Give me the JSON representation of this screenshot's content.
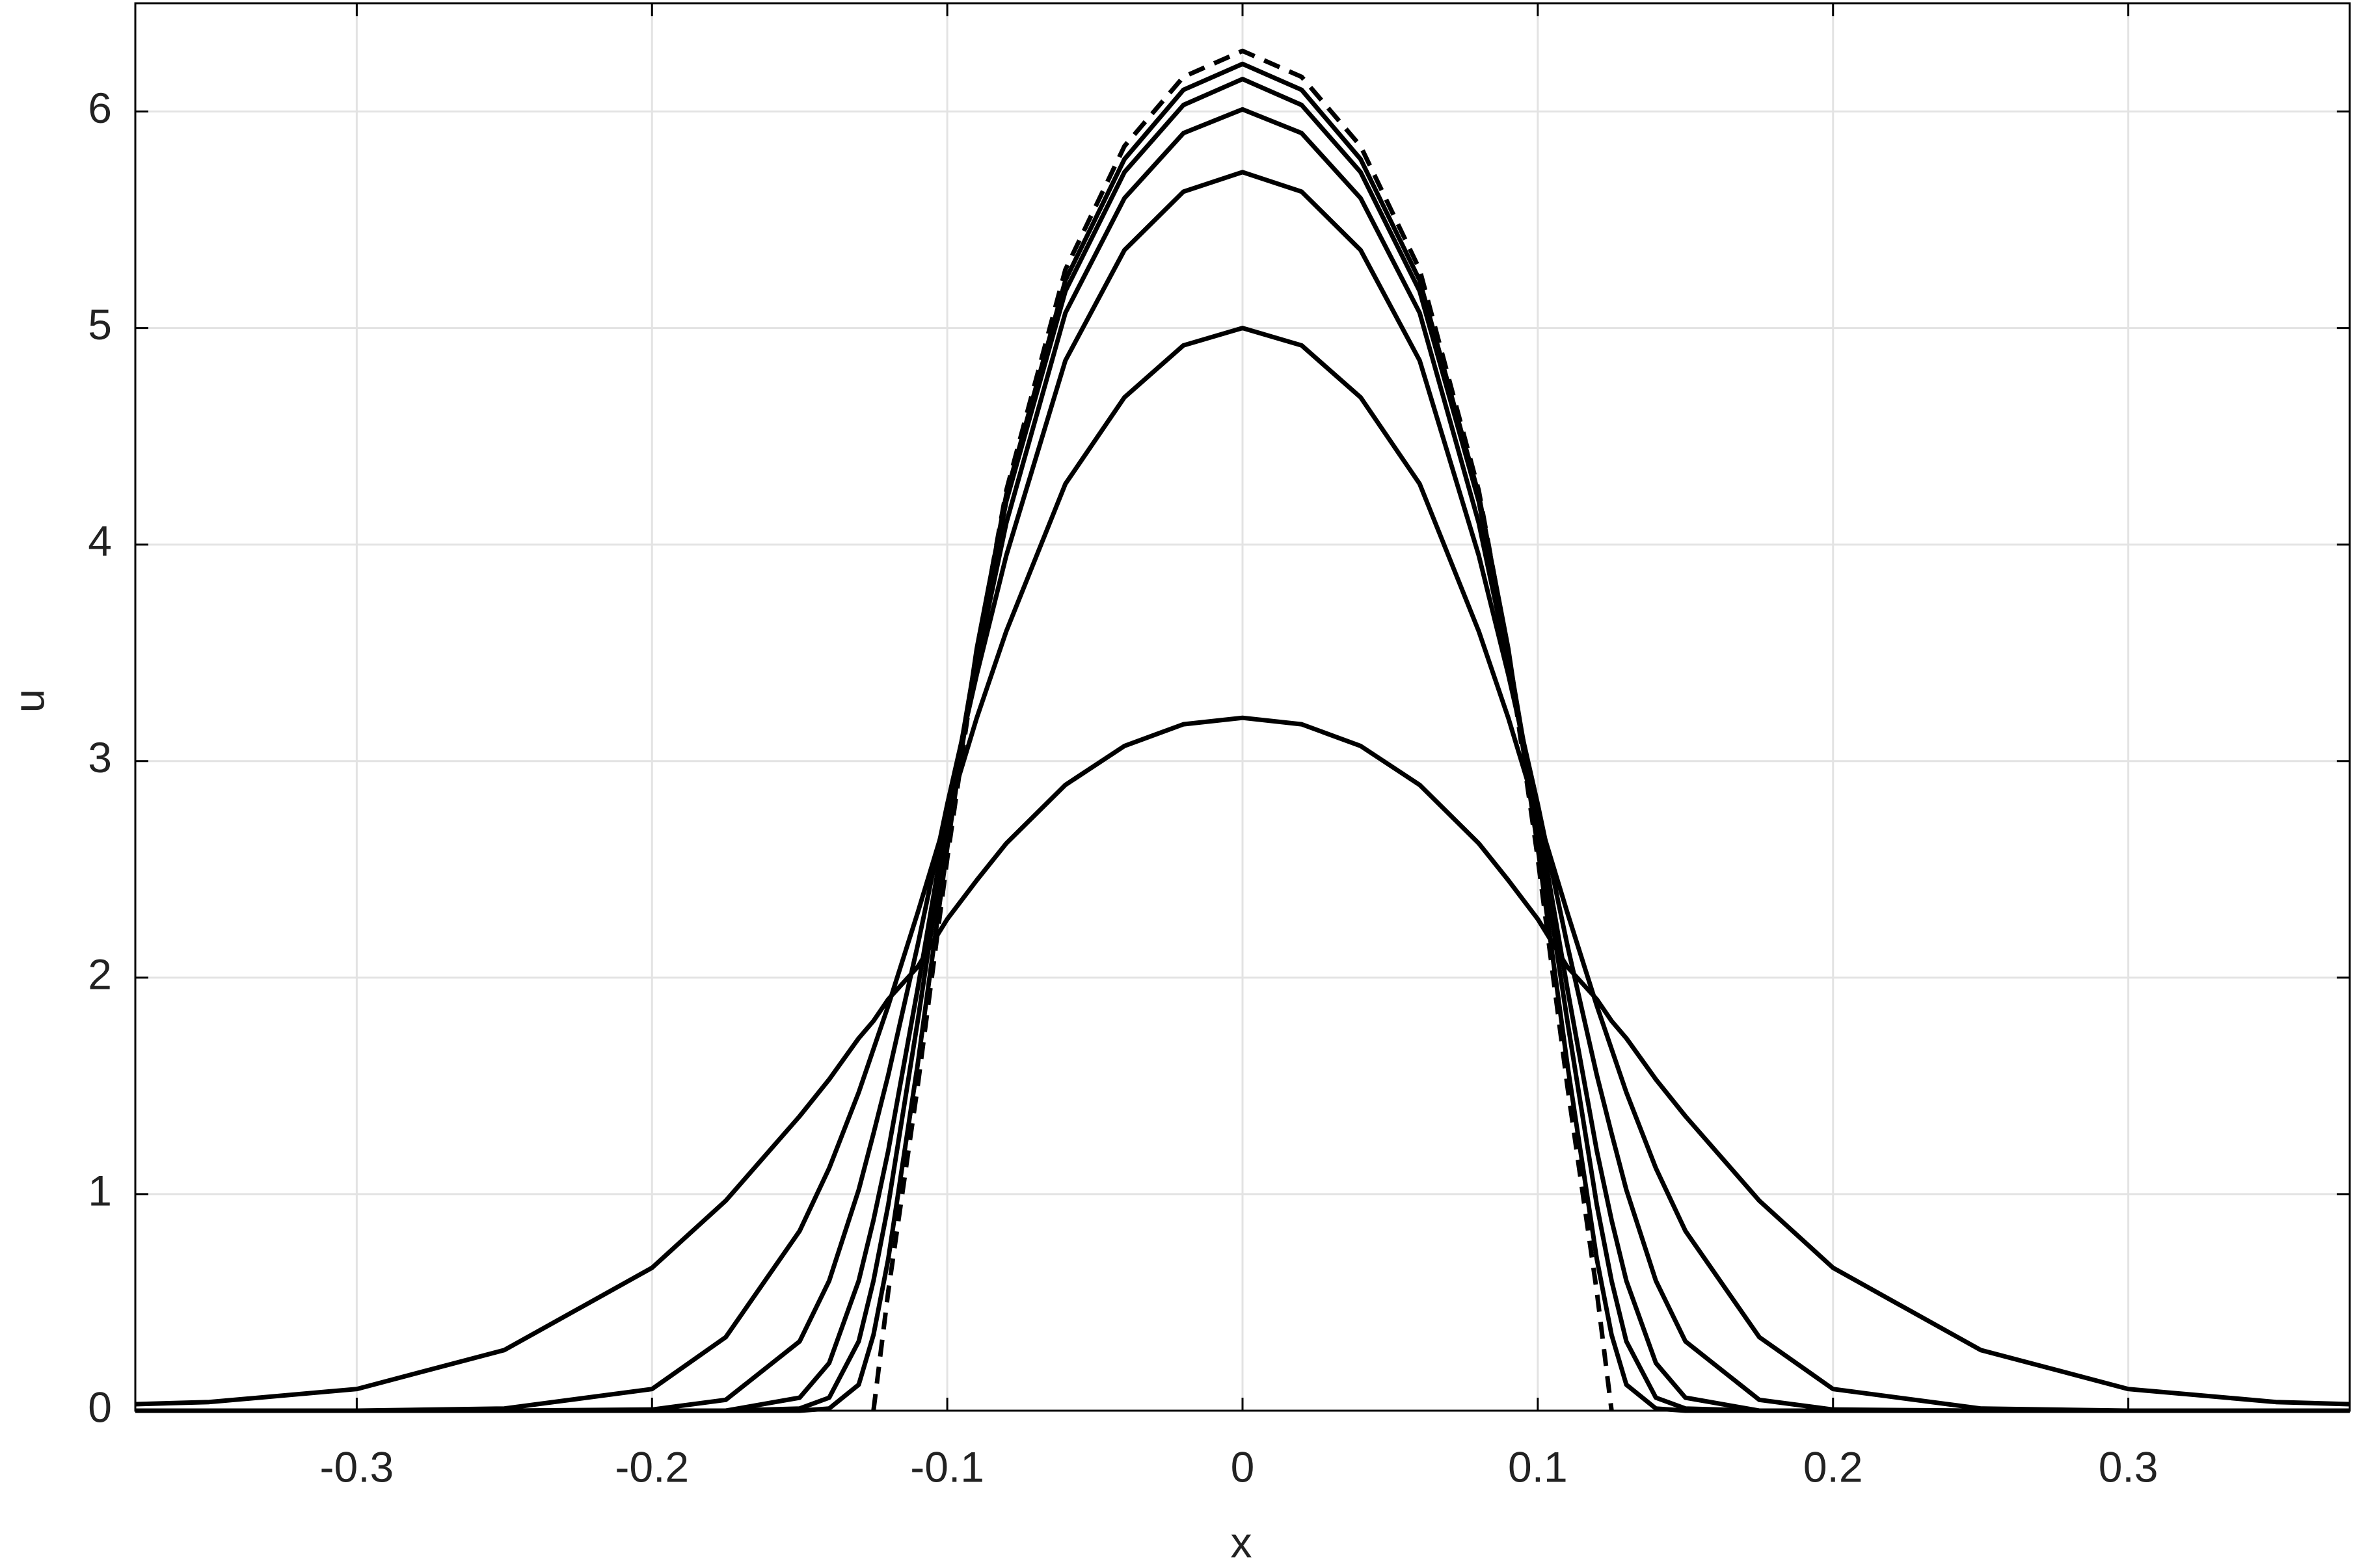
{
  "chart_data": {
    "type": "line",
    "x_label": "x",
    "y_label": "u",
    "x": [
      -0.375,
      -0.35,
      -0.3,
      -0.25,
      -0.2,
      -0.175,
      -0.15,
      -0.14,
      -0.13,
      -0.125,
      -0.12,
      -0.11,
      -0.1,
      -0.09,
      -0.08,
      -0.06,
      -0.04,
      -0.02,
      0,
      0.02,
      0.04,
      0.06,
      0.08,
      0.09,
      0.1,
      0.11,
      0.12,
      0.125,
      0.13,
      0.14,
      0.15,
      0.175,
      0.2,
      0.25,
      0.3,
      0.35,
      0.375
    ],
    "series": [
      {
        "color": "#000000",
        "dashed": false,
        "values": [
          0.03,
          0.04,
          0.1,
          0.28,
          0.66,
          0.97,
          1.36,
          1.53,
          1.72,
          1.8,
          1.9,
          2.05,
          2.27,
          2.45,
          2.62,
          2.89,
          3.07,
          3.17,
          3.2,
          3.17,
          3.07,
          2.89,
          2.62,
          2.45,
          2.27,
          2.05,
          1.9,
          1.8,
          1.72,
          1.53,
          1.36,
          0.97,
          0.66,
          0.28,
          0.1,
          0.04,
          0.03
        ]
      },
      {
        "color": "#000000",
        "dashed": false,
        "values": [
          0,
          0,
          0,
          0.01,
          0.1,
          0.34,
          0.83,
          1.12,
          1.47,
          1.67,
          1.87,
          2.3,
          2.75,
          3.2,
          3.6,
          4.28,
          4.68,
          4.92,
          5.0,
          4.92,
          4.68,
          4.28,
          3.6,
          3.2,
          2.75,
          2.3,
          1.87,
          1.67,
          1.47,
          1.12,
          0.83,
          0.34,
          0.1,
          0.01,
          0,
          0,
          0
        ]
      },
      {
        "color": "#000000",
        "dashed": false,
        "values": [
          0,
          0,
          0,
          0,
          0.005,
          0.05,
          0.32,
          0.6,
          1.02,
          1.28,
          1.55,
          2.15,
          2.8,
          3.4,
          3.95,
          4.85,
          5.36,
          5.63,
          5.72,
          5.63,
          5.36,
          4.85,
          3.95,
          3.4,
          2.8,
          2.15,
          1.55,
          1.28,
          1.02,
          0.6,
          0.32,
          0.05,
          0.005,
          0,
          0,
          0,
          0
        ]
      },
      {
        "color": "#000000",
        "dashed": false,
        "values": [
          0,
          0,
          0,
          0,
          0,
          0,
          0.06,
          0.22,
          0.6,
          0.88,
          1.2,
          1.95,
          2.75,
          3.45,
          4.1,
          5.07,
          5.6,
          5.9,
          6.01,
          5.9,
          5.6,
          5.07,
          4.1,
          3.45,
          2.75,
          1.95,
          1.2,
          0.88,
          0.6,
          0.22,
          0.06,
          0,
          0,
          0,
          0,
          0,
          0
        ]
      },
      {
        "color": "#000000",
        "dashed": false,
        "values": [
          0,
          0,
          0,
          0,
          0,
          0,
          0.01,
          0.06,
          0.32,
          0.6,
          0.95,
          1.8,
          2.7,
          3.5,
          4.2,
          5.17,
          5.72,
          6.03,
          6.15,
          6.03,
          5.72,
          5.17,
          4.2,
          3.5,
          2.7,
          1.8,
          0.95,
          0.6,
          0.32,
          0.06,
          0.01,
          0,
          0,
          0,
          0,
          0,
          0
        ]
      },
      {
        "color": "#000000",
        "dashed": false,
        "values": [
          0,
          0,
          0,
          0,
          0,
          0,
          0,
          0.01,
          0.12,
          0.35,
          0.7,
          1.6,
          2.6,
          3.52,
          4.23,
          5.22,
          5.78,
          6.1,
          6.22,
          6.1,
          5.78,
          5.22,
          4.23,
          3.52,
          2.6,
          1.6,
          0.7,
          0.35,
          0.12,
          0.01,
          0,
          0,
          0,
          0,
          0,
          0,
          0
        ]
      },
      {
        "color": "#000000",
        "dashed": true,
        "values": [
          null,
          null,
          null,
          null,
          null,
          null,
          null,
          null,
          null,
          0,
          0.55,
          1.5,
          2.55,
          3.5,
          4.25,
          5.27,
          5.84,
          6.16,
          6.28,
          6.16,
          5.84,
          5.27,
          4.25,
          3.5,
          2.55,
          1.5,
          0.55,
          0,
          null,
          null,
          null,
          null,
          null,
          null,
          null,
          null,
          null
        ]
      }
    ],
    "xlim": [
      -0.375,
      0.375
    ],
    "xticks": [
      -0.3,
      -0.2,
      -0.1,
      0,
      0.1,
      0.2,
      0.3
    ],
    "ylim": [
      0,
      6.5
    ],
    "yticks": [
      0,
      1,
      2,
      3,
      4,
      5,
      6
    ],
    "grid": true
  }
}
